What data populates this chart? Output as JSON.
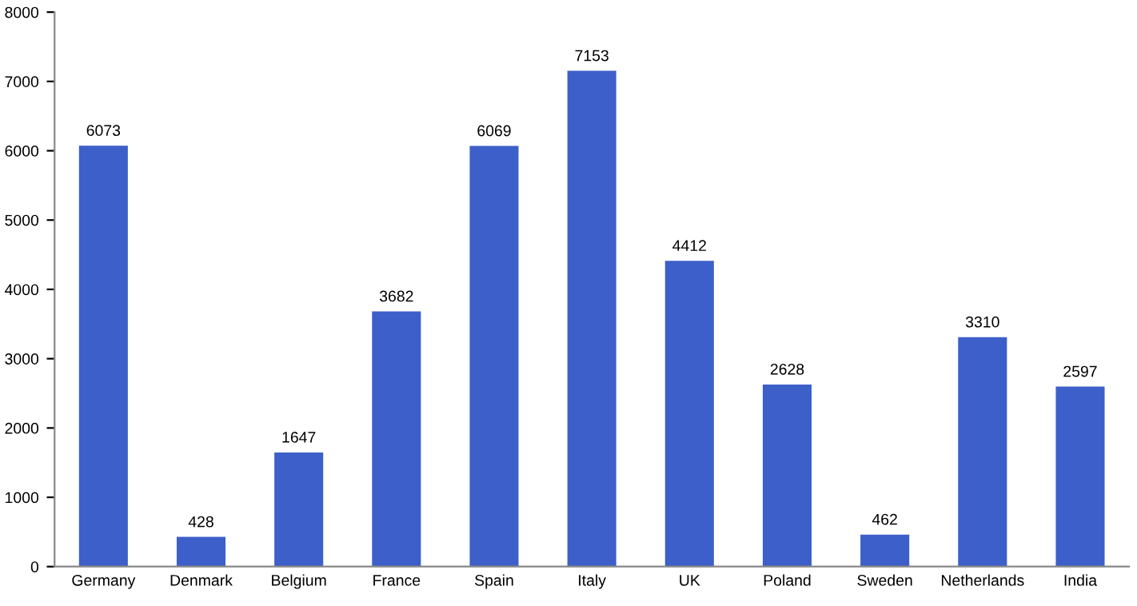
{
  "chart_data": {
    "type": "bar",
    "categories": [
      "Germany",
      "Denmark",
      "Belgium",
      "France",
      "Spain",
      "Italy",
      "UK",
      "Poland",
      "Sweden",
      "Netherlands",
      "India"
    ],
    "values": [
      6073,
      428,
      1647,
      3682,
      6069,
      7153,
      4412,
      2628,
      462,
      3310,
      2597
    ],
    "color": "#3d5fc9",
    "ylim": [
      0,
      8000
    ],
    "yticks": [
      0,
      1000,
      2000,
      3000,
      4000,
      5000,
      6000,
      7000,
      8000
    ],
    "grid": false,
    "data_labels": true
  }
}
